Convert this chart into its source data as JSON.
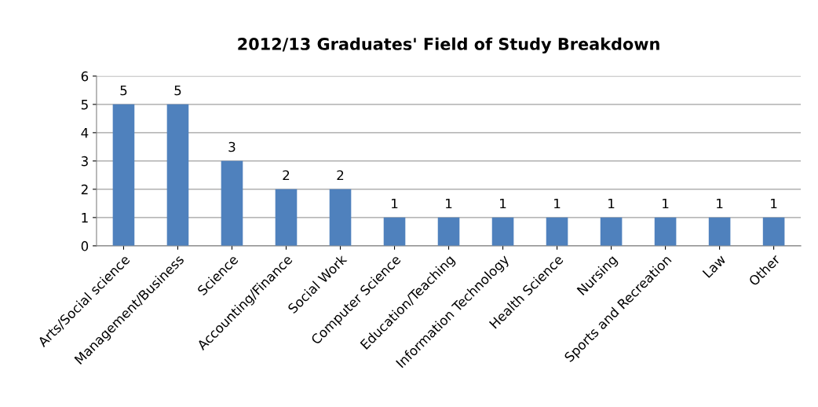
{
  "chart_data": {
    "type": "bar",
    "title": "2012/13 Graduates' Field of Study Breakdown",
    "categories": [
      "Arts/Social science",
      "Management/Business",
      "Science",
      "Accounting/Finance",
      "Social Work",
      "Computer Science",
      "Education/Teaching",
      "Information Technology",
      "Health Science",
      "Nursing",
      "Sports and Recreation",
      "Law",
      "Other"
    ],
    "values": [
      5,
      5,
      3,
      2,
      2,
      1,
      1,
      1,
      1,
      1,
      1,
      1,
      1
    ],
    "color": "#4f81bd",
    "ylim": [
      0,
      6
    ],
    "yticks": [
      0,
      1,
      2,
      3,
      4,
      5,
      6
    ],
    "grid": "y",
    "data_labels": true
  }
}
